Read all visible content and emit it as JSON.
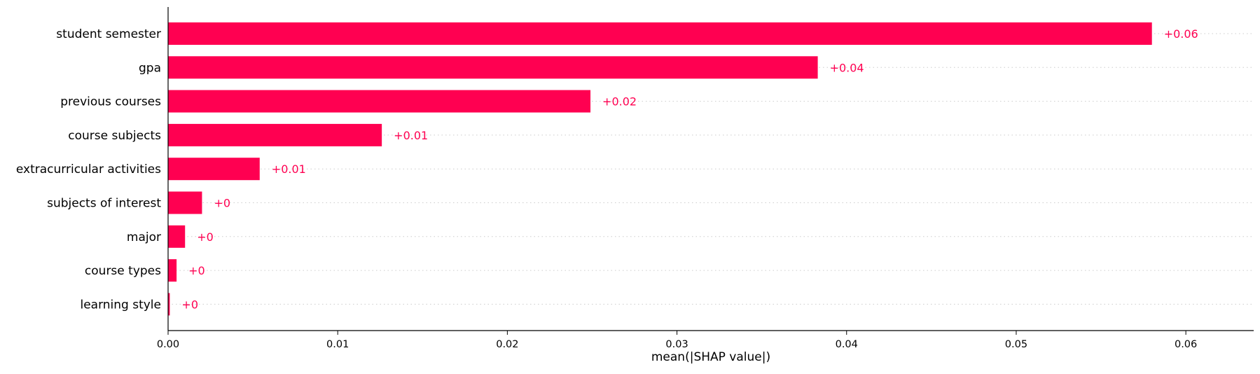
{
  "chart_data": {
    "type": "bar",
    "orientation": "horizontal",
    "categories": [
      "student semester",
      "gpa",
      "previous courses",
      "course subjects",
      "extracurricular activities",
      "subjects of interest",
      "major",
      "course types",
      "learning style"
    ],
    "values": [
      0.058,
      0.0383,
      0.0249,
      0.0126,
      0.0054,
      0.002,
      0.001,
      0.0005,
      0.0001
    ],
    "value_labels": [
      "+0.06",
      "+0.04",
      "+0.02",
      "+0.01",
      "+0.01",
      "+0",
      "+0",
      "+0",
      "+0"
    ],
    "xlabel": "mean(|SHAP value|)",
    "ylabel": "",
    "title": "",
    "xlim": [
      0,
      0.064
    ],
    "xticks": [
      0,
      0.01,
      0.02,
      0.03,
      0.04,
      0.05,
      0.06
    ],
    "xtick_labels": [
      "0.00",
      "0.01",
      "0.02",
      "0.03",
      "0.04",
      "0.05",
      "0.06"
    ],
    "grid": "horizontal dotted row lines",
    "legend": "none",
    "bar_color": "#ff0051",
    "label_color": "#ff0051"
  }
}
